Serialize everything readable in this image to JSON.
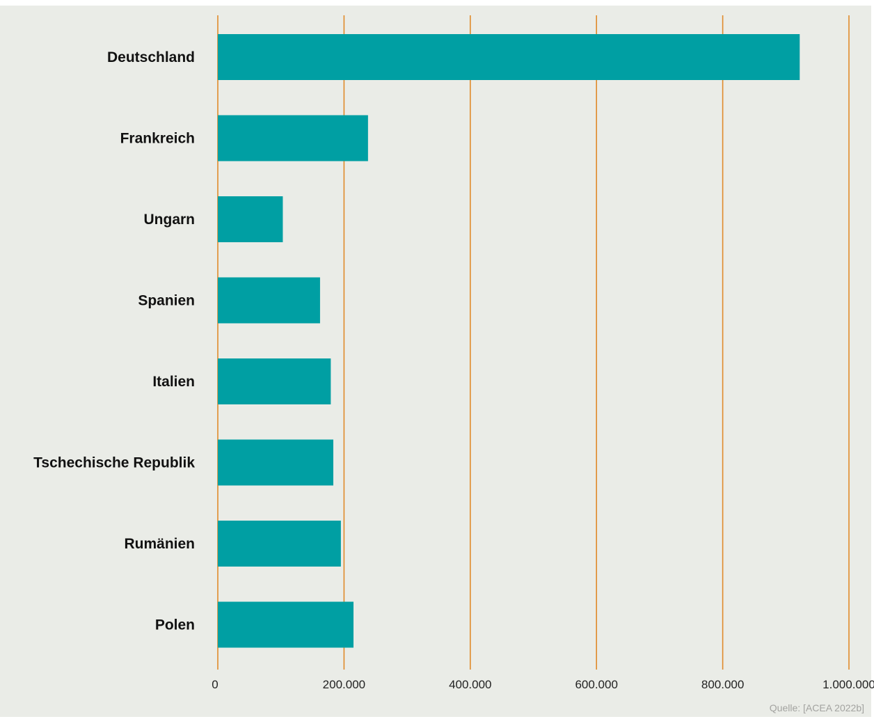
{
  "chart_data": {
    "type": "bar",
    "orientation": "horizontal",
    "categories": [
      "Deutschland",
      "Frankreich",
      "Ungarn",
      "Spanien",
      "Italien",
      "Tschechische Republik",
      "Rumänien",
      "Polen"
    ],
    "values": [
      922000,
      238000,
      103000,
      162000,
      179000,
      183000,
      195000,
      215000
    ],
    "xlim": [
      0,
      1000000
    ],
    "xticks": [
      0,
      200000,
      400000,
      600000,
      800000,
      1000000
    ],
    "xtick_labels": [
      "0",
      "200.000",
      "400.000",
      "600.000",
      "800.000",
      "1.000.000"
    ],
    "grid": "vertical",
    "title": "",
    "xlabel": "",
    "ylabel": "",
    "legend": "none",
    "source": "Quelle: [ACEA 2022b]",
    "colors": {
      "bar": "#009fa3",
      "grid": "#e08a2a",
      "background": "#eaece7"
    }
  }
}
